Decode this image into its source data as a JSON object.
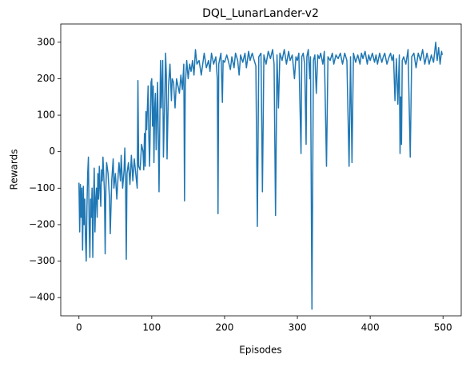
{
  "chart_data": {
    "type": "line",
    "title": "DQL_LunarLander-v2",
    "xlabel": "Episodes",
    "ylabel": "Rewards",
    "color": "#1f77b4",
    "x": [
      0,
      1,
      2,
      3,
      4,
      5,
      6,
      7,
      8,
      9,
      10,
      11,
      12,
      13,
      14,
      15,
      16,
      17,
      18,
      19,
      20,
      21,
      22,
      23,
      24,
      25,
      26,
      27,
      28,
      29,
      30,
      31,
      32,
      33,
      35,
      36,
      37,
      38,
      40,
      42,
      43,
      45,
      47,
      48,
      50,
      52,
      54,
      55,
      57,
      58,
      60,
      62,
      63,
      64,
      65,
      66,
      68,
      70,
      72,
      74,
      76,
      78,
      80,
      81,
      82,
      84,
      86,
      88,
      89,
      90,
      91,
      92,
      93,
      95,
      96,
      97,
      99,
      100,
      101,
      102,
      103,
      104,
      105,
      106,
      108,
      110,
      112,
      113,
      115,
      116,
      118,
      119,
      120,
      121,
      123,
      125,
      127,
      128,
      130,
      132,
      134,
      136,
      138,
      140,
      142,
      144,
      145,
      146,
      148,
      150,
      152,
      154,
      156,
      158,
      160,
      162,
      165,
      168,
      170,
      172,
      175,
      178,
      180,
      182,
      185,
      188,
      190,
      191,
      192,
      195,
      197,
      198,
      200,
      203,
      205,
      208,
      210,
      213,
      215,
      218,
      220,
      222,
      225,
      228,
      230,
      233,
      235,
      238,
      240,
      243,
      245,
      247,
      250,
      252,
      254,
      257,
      260,
      263,
      266,
      268,
      270,
      272,
      274,
      276,
      279,
      282,
      285,
      288,
      290,
      293,
      296,
      298,
      300,
      302,
      305,
      306,
      308,
      310,
      312,
      313,
      315,
      317,
      318,
      320,
      322,
      324,
      326,
      328,
      330,
      332,
      335,
      337,
      340,
      342,
      345,
      348,
      350,
      353,
      356,
      359,
      362,
      365,
      368,
      371,
      373,
      375,
      377,
      380,
      383,
      386,
      388,
      390,
      393,
      396,
      398,
      400,
      403,
      406,
      408,
      410,
      413,
      416,
      418,
      420,
      423,
      426,
      428,
      430,
      432,
      434,
      436,
      438,
      440,
      441,
      442,
      443,
      444,
      446,
      449,
      452,
      455,
      457,
      460,
      463,
      466,
      469,
      472,
      475,
      478,
      481,
      484,
      487,
      490,
      492,
      494,
      496,
      498,
      499
    ],
    "values": [
      -85,
      -220,
      -90,
      -180,
      -100,
      -270,
      -95,
      -200,
      -130,
      -240,
      -300,
      -150,
      -60,
      -15,
      -200,
      -290,
      -130,
      -180,
      -100,
      -290,
      -140,
      -45,
      -220,
      -130,
      -100,
      -180,
      -60,
      -130,
      -40,
      -100,
      -150,
      -50,
      -80,
      -15,
      -110,
      -280,
      -100,
      -30,
      -60,
      -130,
      -225,
      -80,
      -20,
      -100,
      -60,
      -130,
      -60,
      -30,
      -80,
      -10,
      -100,
      -50,
      10,
      -80,
      -295,
      -60,
      -30,
      -90,
      -10,
      -80,
      -20,
      -60,
      -100,
      195,
      -40,
      -50,
      20,
      0,
      -50,
      50,
      -40,
      110,
      60,
      180,
      40,
      -40,
      190,
      200,
      70,
      180,
      -30,
      120,
      160,
      5,
      190,
      -110,
      250,
      120,
      250,
      -15,
      160,
      270,
      210,
      -20,
      180,
      240,
      140,
      200,
      190,
      120,
      200,
      180,
      160,
      210,
      170,
      240,
      -135,
      180,
      250,
      200,
      240,
      220,
      250,
      210,
      280,
      240,
      250,
      210,
      240,
      270,
      230,
      250,
      220,
      270,
      240,
      260,
      200,
      -170,
      240,
      270,
      135,
      250,
      245,
      265,
      250,
      225,
      260,
      230,
      270,
      250,
      210,
      265,
      245,
      270,
      230,
      275,
      250,
      270,
      255,
      235,
      -205,
      260,
      270,
      -110,
      265,
      240,
      275,
      255,
      280,
      240,
      -175,
      265,
      120,
      270,
      250,
      280,
      240,
      275,
      250,
      265,
      200,
      260,
      250,
      270,
      -5,
      260,
      270,
      240,
      20,
      260,
      280,
      200,
      260,
      -432,
      250,
      265,
      160,
      265,
      255,
      270,
      240,
      275,
      -40,
      260,
      250,
      270,
      240,
      265,
      255,
      270,
      240,
      270,
      250,
      -40,
      260,
      -30,
      270,
      245,
      265,
      240,
      270,
      255,
      275,
      240,
      265,
      250,
      270,
      245,
      265,
      240,
      270,
      245,
      260,
      270,
      240,
      260,
      270,
      250,
      265,
      140,
      255,
      130,
      265,
      -5,
      150,
      20,
      250,
      260,
      240,
      280,
      -15,
      260,
      270,
      230,
      270,
      250,
      280,
      240,
      270,
      240,
      265,
      245,
      300,
      250,
      285,
      240,
      275,
      265
    ],
    "xlim": [
      -25,
      525
    ],
    "ylim": [
      -450,
      350
    ],
    "xticks": [
      0,
      100,
      200,
      300,
      400,
      500
    ],
    "yticks": [
      {
        "value": -400,
        "label": "−400"
      },
      {
        "value": -300,
        "label": "−300"
      },
      {
        "value": -200,
        "label": "−200"
      },
      {
        "value": -100,
        "label": "−100"
      },
      0,
      100,
      200,
      300
    ]
  }
}
